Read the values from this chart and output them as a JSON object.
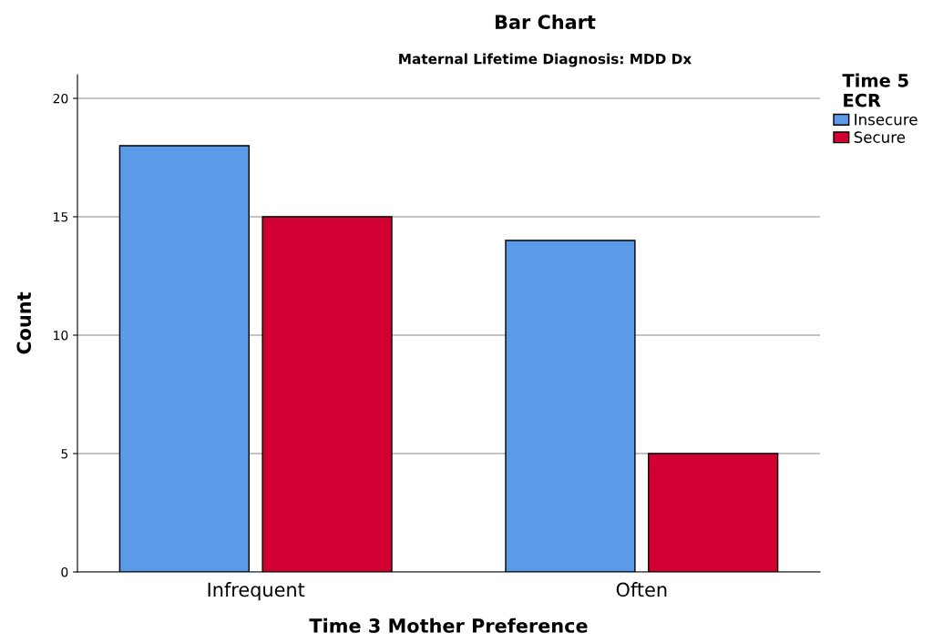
{
  "chart_data": {
    "type": "bar",
    "title": "Bar Chart",
    "subtitle": "Maternal Lifetime Diagnosis: MDD Dx",
    "xlabel": "Time 3 Mother Preference",
    "ylabel": "Count",
    "categories": [
      "Infrequent",
      "Often"
    ],
    "series": [
      {
        "name": "Insecure",
        "color": "#5a9ae6",
        "values": [
          18,
          14
        ]
      },
      {
        "name": "Secure",
        "color": "#d20032",
        "values": [
          15,
          5
        ]
      }
    ],
    "legend_title": "Time 5\nECR",
    "legend": "top right",
    "ylim": [
      0,
      21
    ],
    "yticks": [
      0,
      5,
      10,
      15,
      20
    ],
    "grid": "y"
  }
}
